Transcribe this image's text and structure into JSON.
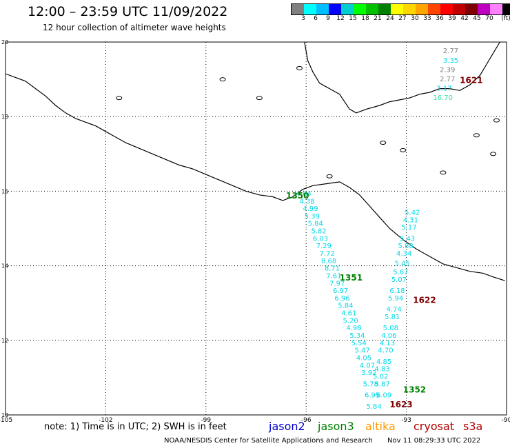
{
  "header": {
    "title": "12:00 – 23:59 UTC 11/09/2022",
    "subtitle": "12 hour collection of altimeter wave heights"
  },
  "color_scale": {
    "labels": [
      "3",
      "6",
      "9",
      "12",
      "15",
      "18",
      "21",
      "24",
      "27",
      "30",
      "33",
      "36",
      "39",
      "42",
      "45",
      "70",
      "(ft)"
    ],
    "colors": [
      "#808080",
      "#00ffff",
      "#00bfff",
      "#0000ff",
      "#00ced1",
      "#00ff00",
      "#00c000",
      "#008000",
      "#ffff00",
      "#ffd700",
      "#ffa500",
      "#ff4500",
      "#ff0000",
      "#c00000",
      "#800000",
      "#c000c0",
      "#ff80ff",
      "#000000"
    ]
  },
  "map": {
    "lon_range": [
      -105,
      -90
    ],
    "lat_range": [
      10,
      20
    ],
    "lon_labels": [
      "-105",
      "-102",
      "-99",
      "-96",
      "-93",
      "-90"
    ],
    "lat_labels": [
      "20",
      "18",
      "16",
      "14",
      "12",
      "10"
    ],
    "track_colors": {
      "jason3": "#008000",
      "cryosat": "#800000",
      "wave": "#00d8e8",
      "low": "#808080",
      "mid": "#33ddaa"
    },
    "tracks": [
      {
        "id": "1350",
        "color": "jason3",
        "lon": -96.6,
        "lat": 15.8
      },
      {
        "id": "1351",
        "color": "jason3",
        "lon": -95.0,
        "lat": 13.6
      },
      {
        "id": "1352",
        "color": "jason3",
        "lon": -93.1,
        "lat": 10.6
      },
      {
        "id": "1621",
        "color": "cryosat",
        "lon": -91.4,
        "lat": 18.9
      },
      {
        "id": "1622",
        "color": "cryosat",
        "lon": -92.8,
        "lat": 13.0
      },
      {
        "id": "1623",
        "color": "cryosat",
        "lon": -93.5,
        "lat": 10.2
      }
    ],
    "wave_labels": [
      {
        "v": "2.77",
        "lon": -91.9,
        "lat": 19.7,
        "c": "low"
      },
      {
        "v": "3.35",
        "lon": -91.9,
        "lat": 19.45,
        "c": "wave"
      },
      {
        "v": "2.39",
        "lon": -92.0,
        "lat": 19.2,
        "c": "low"
      },
      {
        "v": "2.77",
        "lon": -92.0,
        "lat": 18.95,
        "c": "low"
      },
      {
        "v": "3.17",
        "lon": -92.1,
        "lat": 18.7,
        "c": "wave"
      },
      {
        "v": "16.70",
        "lon": -92.2,
        "lat": 18.45,
        "c": "mid"
      },
      {
        "v": "4.64",
        "lon": -96.3,
        "lat": 15.87,
        "c": "wave"
      },
      {
        "v": "4.38",
        "lon": -96.2,
        "lat": 15.67,
        "c": "wave"
      },
      {
        "v": "4.99",
        "lon": -96.1,
        "lat": 15.47,
        "c": "wave"
      },
      {
        "v": "5.39",
        "lon": -96.05,
        "lat": 15.27,
        "c": "wave"
      },
      {
        "v": "5.84",
        "lon": -95.95,
        "lat": 15.07,
        "c": "wave"
      },
      {
        "v": "5.82",
        "lon": -95.85,
        "lat": 14.87,
        "c": "wave"
      },
      {
        "v": "6.03",
        "lon": -95.8,
        "lat": 14.67,
        "c": "wave"
      },
      {
        "v": "7.29",
        "lon": -95.7,
        "lat": 14.47,
        "c": "wave"
      },
      {
        "v": "7.72",
        "lon": -95.6,
        "lat": 14.27,
        "c": "wave"
      },
      {
        "v": "8.68",
        "lon": -95.55,
        "lat": 14.07,
        "c": "wave"
      },
      {
        "v": "8.71",
        "lon": -95.45,
        "lat": 13.87,
        "c": "wave"
      },
      {
        "v": "7.61",
        "lon": -95.4,
        "lat": 13.67,
        "c": "wave"
      },
      {
        "v": "7.97",
        "lon": -95.3,
        "lat": 13.47,
        "c": "wave"
      },
      {
        "v": "6.97",
        "lon": -95.2,
        "lat": 13.27,
        "c": "wave"
      },
      {
        "v": "6.96",
        "lon": -95.15,
        "lat": 13.07,
        "c": "wave"
      },
      {
        "v": "5.84",
        "lon": -95.05,
        "lat": 12.87,
        "c": "wave"
      },
      {
        "v": "4.61",
        "lon": -94.95,
        "lat": 12.67,
        "c": "wave"
      },
      {
        "v": "5.20",
        "lon": -94.9,
        "lat": 12.47,
        "c": "wave"
      },
      {
        "v": "4.98",
        "lon": -94.8,
        "lat": 12.27,
        "c": "wave"
      },
      {
        "v": "5.34",
        "lon": -94.7,
        "lat": 12.07,
        "c": "wave"
      },
      {
        "v": "5.54",
        "lon": -94.65,
        "lat": 11.87,
        "c": "wave"
      },
      {
        "v": "5.47",
        "lon": -94.55,
        "lat": 11.67,
        "c": "wave"
      },
      {
        "v": "4.05",
        "lon": -94.5,
        "lat": 11.47,
        "c": "wave"
      },
      {
        "v": "4.07",
        "lon": -94.4,
        "lat": 11.27,
        "c": "wave"
      },
      {
        "v": "3.92",
        "lon": -94.35,
        "lat": 11.07,
        "c": "wave"
      },
      {
        "v": "5.78",
        "lon": -94.3,
        "lat": 10.77,
        "c": "wave"
      },
      {
        "v": "6.95",
        "lon": -94.25,
        "lat": 10.47,
        "c": "wave"
      },
      {
        "v": "5.84",
        "lon": -94.2,
        "lat": 10.17,
        "c": "wave"
      },
      {
        "v": "5.42",
        "lon": -93.05,
        "lat": 15.37,
        "c": "wave"
      },
      {
        "v": "4.31",
        "lon": -93.1,
        "lat": 15.17,
        "c": "wave"
      },
      {
        "v": "5.17",
        "lon": -93.15,
        "lat": 14.97,
        "c": "wave"
      },
      {
        "v": "5.43",
        "lon": -93.2,
        "lat": 14.67,
        "c": "wave"
      },
      {
        "v": "5.88",
        "lon": -93.25,
        "lat": 14.47,
        "c": "wave"
      },
      {
        "v": "4.34",
        "lon": -93.3,
        "lat": 14.27,
        "c": "wave"
      },
      {
        "v": "5.45",
        "lon": -93.35,
        "lat": 14.0,
        "c": "wave"
      },
      {
        "v": "5.67",
        "lon": -93.4,
        "lat": 13.77,
        "c": "wave"
      },
      {
        "v": "5.07",
        "lon": -93.45,
        "lat": 13.57,
        "c": "wave"
      },
      {
        "v": "6.18",
        "lon": -93.5,
        "lat": 13.27,
        "c": "wave"
      },
      {
        "v": "5.94",
        "lon": -93.55,
        "lat": 13.07,
        "c": "wave"
      },
      {
        "v": "4.74",
        "lon": -93.6,
        "lat": 12.77,
        "c": "wave"
      },
      {
        "v": "5.81",
        "lon": -93.65,
        "lat": 12.57,
        "c": "wave"
      },
      {
        "v": "5.08",
        "lon": -93.7,
        "lat": 12.27,
        "c": "wave"
      },
      {
        "v": "4.06",
        "lon": -93.75,
        "lat": 12.07,
        "c": "wave"
      },
      {
        "v": "4.13",
        "lon": -93.8,
        "lat": 11.87,
        "c": "wave"
      },
      {
        "v": "4.70",
        "lon": -93.85,
        "lat": 11.67,
        "c": "wave"
      },
      {
        "v": "4.85",
        "lon": -93.9,
        "lat": 11.37,
        "c": "wave"
      },
      {
        "v": "4.83",
        "lon": -93.95,
        "lat": 11.17,
        "c": "wave"
      },
      {
        "v": "5.02",
        "lon": -94.0,
        "lat": 10.97,
        "c": "wave"
      },
      {
        "v": "5.87",
        "lon": -93.95,
        "lat": 10.77,
        "c": "wave"
      },
      {
        "v": "6.09",
        "lon": -93.9,
        "lat": 10.47,
        "c": "wave"
      }
    ]
  },
  "note": "note: 1) Time is in UTC; 2) SWH is in feet",
  "satellites": [
    {
      "name": "jason2",
      "color": "#0000cc"
    },
    {
      "name": "jason3",
      "color": "#008000"
    },
    {
      "name": "altika",
      "color": "#ff9900"
    },
    {
      "name": "cryosat",
      "color": "#b00000"
    },
    {
      "name": "s3a",
      "color": "#b00000"
    }
  ],
  "footer": {
    "credit": "NOAA/NESDIS Center for Satellite Applications and Research",
    "timestamp": "Nov 11 08:29:33 UTC 2022"
  }
}
